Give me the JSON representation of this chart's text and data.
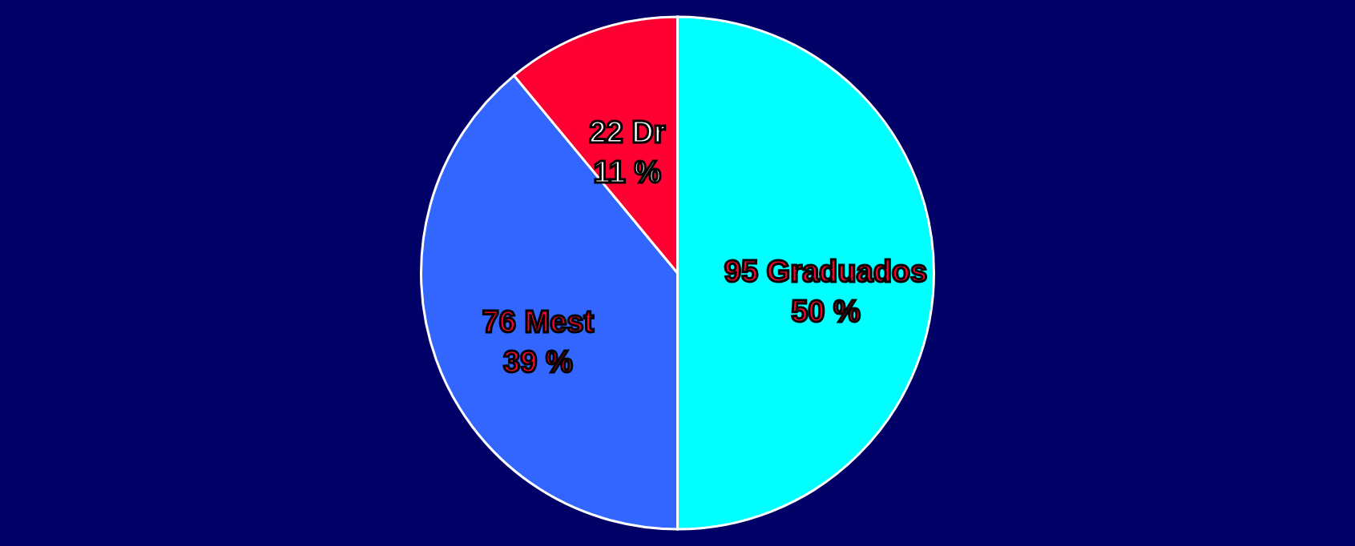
{
  "chart_data": {
    "type": "pie",
    "categories": [
      "95 Graduados",
      "76 Mest",
      "22 Dr"
    ],
    "values": [
      50,
      39,
      11
    ],
    "colors": [
      "#00ffff",
      "#3366ff",
      "#ff0033"
    ],
    "value_labels": [
      "50 %",
      "39 %",
      "11 %"
    ],
    "legend": false
  }
}
